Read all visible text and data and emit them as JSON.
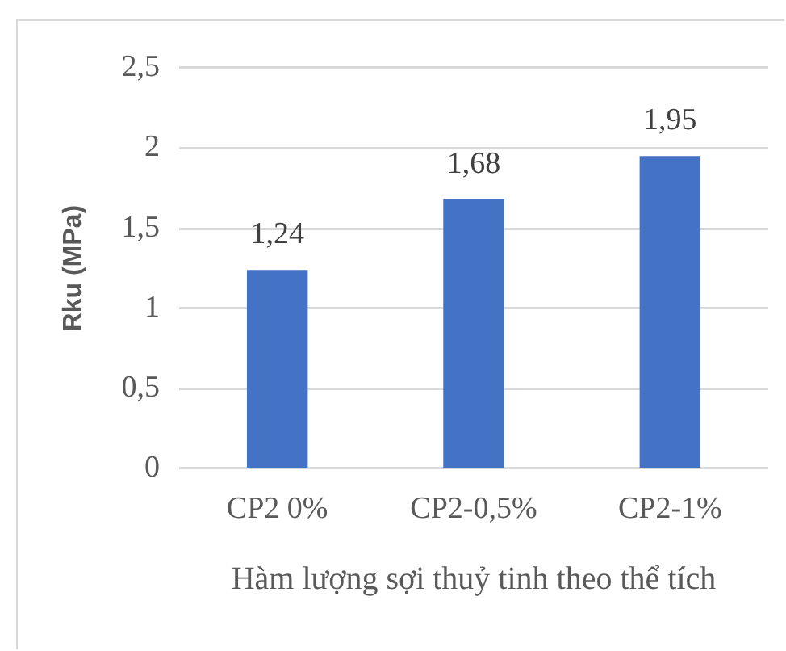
{
  "chart_data": {
    "type": "bar",
    "xlabel": "Hàm lượng sợi thuỷ tinh theo thể tích",
    "ylabel": "Rku (MPa)",
    "categories": [
      "CP2 0%",
      "CP2-0,5%",
      "CP2-1%"
    ],
    "values": [
      1.24,
      1.68,
      1.95
    ],
    "color": "#4472c4",
    "value_labels": [
      "1,24",
      "1,68",
      "1,95"
    ],
    "ylim": [
      0,
      2.5
    ],
    "yticks": [
      0,
      {
        "value": 0.5,
        "label": "0,5"
      },
      1,
      {
        "value": 1.5,
        "label": "1,5"
      },
      2,
      {
        "value": 2.5,
        "label": "2,5"
      }
    ],
    "grid": "y"
  }
}
